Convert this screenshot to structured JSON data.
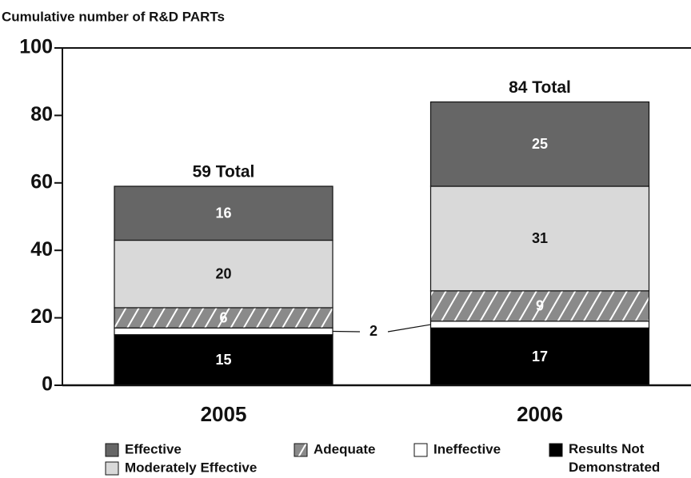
{
  "chart_data": {
    "type": "stacked_bar",
    "title": "Cumulative number of R&D PARTs",
    "categories": [
      "2005",
      "2006"
    ],
    "series": [
      {
        "name": "Results Not Demonstrated",
        "color": "#000000",
        "values": [
          15,
          17
        ]
      },
      {
        "name": "Ineffective",
        "color": "#ffffff",
        "values": [
          2,
          2
        ],
        "callout": true
      },
      {
        "name": "Adequate",
        "color": "#8a8a8a",
        "pattern": "hatch",
        "values": [
          6,
          9
        ]
      },
      {
        "name": "Moderately Effective",
        "color": "#d9d9d9",
        "values": [
          20,
          31
        ]
      },
      {
        "name": "Effective",
        "color": "#666666",
        "values": [
          16,
          25
        ]
      }
    ],
    "annotations": [
      "59 Total",
      "84 Total"
    ],
    "ylim": [
      0,
      100
    ],
    "yticks": [
      0,
      20,
      40,
      60,
      80,
      100
    ],
    "legend_order": [
      4,
      2,
      1,
      0,
      3
    ]
  }
}
